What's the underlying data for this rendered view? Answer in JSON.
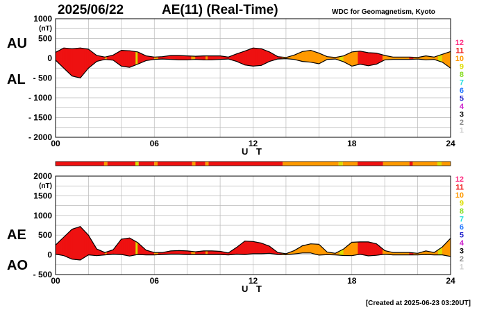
{
  "header": {
    "date": "2025/06/22",
    "title": "AE(11) (Real-Time)",
    "source": "WDC for Geomagnetism, Kyoto"
  },
  "labels": {
    "au": "AU",
    "al": "AL",
    "ae": "AE",
    "ao": "AO"
  },
  "footer": "[Created at 2025-06-23 03:20UT]",
  "legend": {
    "entries": [
      {
        "label": "12",
        "color": "#ff2a7f"
      },
      {
        "label": "11",
        "color": "#ee1111"
      },
      {
        "label": "10",
        "color": "#ff9900"
      },
      {
        "label": "9",
        "color": "#dddd00"
      },
      {
        "label": "8",
        "color": "#88dd22"
      },
      {
        "label": "7",
        "color": "#22dddd"
      },
      {
        "label": "6",
        "color": "#2277ff"
      },
      {
        "label": "5",
        "color": "#2222cc"
      },
      {
        "label": "4",
        "color": "#cc22cc"
      },
      {
        "label": "3",
        "color": "#000000"
      },
      {
        "label": "2",
        "color": "#888888"
      },
      {
        "label": "1",
        "color": "#cccccc"
      }
    ]
  },
  "chart_data": [
    {
      "type": "area",
      "name": "AU/AL",
      "xlabel": "U T",
      "ylabel": "(nT)",
      "xlim": [
        0,
        24
      ],
      "ylim": [
        -2000,
        1000
      ],
      "xticks": [
        "00",
        "06",
        "12",
        "18",
        "24"
      ],
      "yticks": [
        "1000",
        "500",
        "0",
        "- 500",
        "- 1000",
        "- 1500",
        "- 2000"
      ],
      "grid": true,
      "x": [
        0,
        0.5,
        1,
        1.5,
        2,
        2.5,
        3,
        3.5,
        4,
        4.5,
        5,
        5.5,
        6,
        6.5,
        7,
        7.5,
        8,
        8.5,
        9,
        9.5,
        10,
        10.5,
        11,
        11.5,
        12,
        12.5,
        13,
        13.5,
        14,
        14.5,
        15,
        15.5,
        16,
        16.5,
        17,
        17.5,
        18,
        18.5,
        19,
        19.5,
        20,
        20.5,
        21,
        21.5,
        22,
        22.5,
        23,
        23.5,
        24
      ],
      "series": [
        {
          "name": "AU",
          "values": [
            150,
            260,
            240,
            260,
            230,
            70,
            30,
            80,
            200,
            190,
            160,
            60,
            30,
            40,
            70,
            70,
            60,
            50,
            60,
            60,
            60,
            30,
            110,
            180,
            260,
            240,
            160,
            40,
            20,
            80,
            170,
            200,
            130,
            40,
            20,
            60,
            160,
            180,
            140,
            130,
            70,
            30,
            30,
            30,
            20,
            60,
            30,
            100,
            170
          ]
        },
        {
          "name": "AL",
          "values": [
            -50,
            -250,
            -450,
            -500,
            -250,
            -80,
            -30,
            -50,
            -200,
            -230,
            -150,
            -60,
            -30,
            -20,
            -30,
            -40,
            -40,
            -30,
            -40,
            -40,
            -30,
            -20,
            -80,
            -170,
            -200,
            -180,
            -80,
            -20,
            -10,
            -30,
            -80,
            -100,
            -140,
            -30,
            -20,
            -90,
            -200,
            -150,
            -190,
            -150,
            -40,
            -30,
            -30,
            -30,
            -20,
            -40,
            -30,
            -100,
            -250
          ]
        }
      ]
    },
    {
      "type": "area",
      "name": "AE/AO",
      "xlabel": "U T",
      "ylabel": "(nT)",
      "xlim": [
        0,
        24
      ],
      "ylim": [
        -500,
        2000
      ],
      "xticks": [
        "00",
        "06",
        "12",
        "18",
        "24"
      ],
      "yticks": [
        "2000",
        "1500",
        "1000",
        "500",
        "0",
        "- 500"
      ],
      "grid": true,
      "x": [
        0,
        0.5,
        1,
        1.5,
        2,
        2.5,
        3,
        3.5,
        4,
        4.5,
        5,
        5.5,
        6,
        6.5,
        7,
        7.5,
        8,
        8.5,
        9,
        9.5,
        10,
        10.5,
        11,
        11.5,
        12,
        12.5,
        13,
        13.5,
        14,
        14.5,
        15,
        15.5,
        16,
        16.5,
        17,
        17.5,
        18,
        18.5,
        19,
        19.5,
        20,
        20.5,
        21,
        21.5,
        22,
        22.5,
        23,
        23.5,
        24
      ],
      "series": [
        {
          "name": "AE",
          "values": [
            250,
            450,
            650,
            720,
            500,
            150,
            60,
            130,
            400,
            430,
            310,
            120,
            60,
            60,
            100,
            110,
            100,
            80,
            100,
            100,
            90,
            50,
            190,
            350,
            340,
            300,
            220,
            60,
            30,
            110,
            230,
            280,
            270,
            70,
            40,
            150,
            320,
            330,
            330,
            280,
            110,
            60,
            60,
            60,
            40,
            100,
            60,
            200,
            420
          ]
        },
        {
          "name": "AO",
          "values": [
            20,
            -20,
            -110,
            -130,
            0,
            -20,
            0,
            20,
            10,
            -30,
            10,
            0,
            0,
            10,
            20,
            20,
            10,
            10,
            10,
            10,
            10,
            0,
            20,
            10,
            30,
            30,
            40,
            10,
            5,
            25,
            50,
            50,
            -5,
            5,
            0,
            -15,
            -20,
            15,
            -25,
            -10,
            15,
            0,
            0,
            0,
            0,
            10,
            0,
            0,
            -40
          ]
        }
      ]
    }
  ],
  "station_bar": {
    "segments": [
      {
        "end": 2.95,
        "count": 11
      },
      {
        "end": 3.15,
        "count": 10
      },
      {
        "end": 4.85,
        "count": 11
      },
      {
        "end": 5.05,
        "count": 9
      },
      {
        "end": 6.0,
        "count": 11
      },
      {
        "end": 6.2,
        "count": 10
      },
      {
        "end": 8.3,
        "count": 11
      },
      {
        "end": 8.5,
        "count": 10
      },
      {
        "end": 9.1,
        "count": 11
      },
      {
        "end": 9.3,
        "count": 10
      },
      {
        "end": 13.8,
        "count": 11
      },
      {
        "end": 17.2,
        "count": 10
      },
      {
        "end": 17.45,
        "count": 9
      },
      {
        "end": 18.35,
        "count": 10
      },
      {
        "end": 19.9,
        "count": 11
      },
      {
        "end": 21.5,
        "count": 10
      },
      {
        "end": 21.7,
        "count": 11
      },
      {
        "end": 23.2,
        "count": 10
      },
      {
        "end": 23.45,
        "count": 9
      },
      {
        "end": 24,
        "count": 10
      }
    ]
  }
}
